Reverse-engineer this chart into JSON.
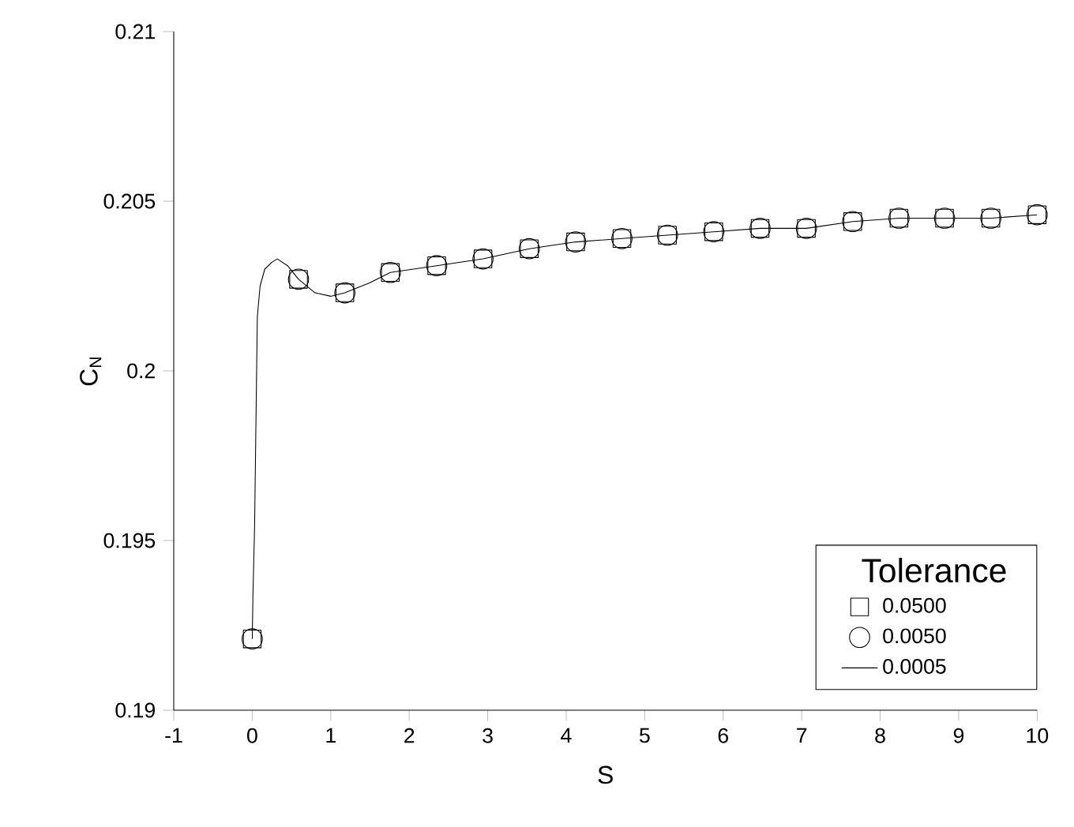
{
  "chart_data": {
    "type": "line",
    "xlabel": "S",
    "ylabel": "C$_{N}$",
    "legend_title": "Tolerance",
    "xlim": [
      -1,
      10
    ],
    "ylim": [
      0.19,
      0.21
    ],
    "xticks": [
      -1,
      0,
      1,
      2,
      3,
      4,
      5,
      6,
      7,
      8,
      9,
      10
    ],
    "yticks": [
      0.19,
      0.195,
      0.2,
      0.205,
      0.21
    ],
    "grid": false,
    "legend": "bottom right",
    "line_style": "solid",
    "series": [
      {
        "name": "0.0500",
        "type": "scatter",
        "color": "#000000",
        "marker": "square",
        "x": [
          0,
          0.59,
          1.18,
          1.76,
          2.35,
          2.94,
          3.53,
          4.12,
          4.71,
          5.29,
          5.88,
          6.47,
          7.06,
          7.65,
          8.24,
          8.82,
          9.41,
          10
        ],
        "values": [
          0.1921,
          0.2027,
          0.2023,
          0.2029,
          0.2031,
          0.2033,
          0.2036,
          0.2038,
          0.2039,
          0.204,
          0.2041,
          0.2042,
          0.2042,
          0.2044,
          0.2045,
          0.2045,
          0.2045,
          0.2046
        ]
      },
      {
        "name": "0.0050",
        "type": "scatter",
        "color": "#000000",
        "marker": "circle",
        "x": [
          0,
          0.59,
          1.18,
          1.76,
          2.35,
          2.94,
          3.53,
          4.12,
          4.71,
          5.29,
          5.88,
          6.47,
          7.06,
          7.65,
          8.24,
          8.82,
          9.41,
          10
        ],
        "values": [
          0.1921,
          0.2027,
          0.2023,
          0.2029,
          0.2031,
          0.2033,
          0.2036,
          0.2038,
          0.2039,
          0.204,
          0.2041,
          0.2042,
          0.2042,
          0.2044,
          0.2045,
          0.2045,
          0.2045,
          0.2046
        ]
      },
      {
        "name": "0.0005",
        "color": "#000000",
        "marker": "none",
        "x": [
          0,
          0.01,
          0.03,
          0.065,
          0.1,
          0.16,
          0.25,
          0.32,
          0.45,
          0.59,
          0.8,
          1.0,
          1.18,
          1.5,
          1.76,
          2.35,
          2.94,
          3.53,
          4.12,
          4.71,
          5.29,
          5.88,
          6.47,
          7.06,
          7.65,
          8.24,
          8.82,
          9.41,
          10
        ],
        "values": [
          0.1921,
          0.1935,
          0.1954,
          0.2016,
          0.2025,
          0.203,
          0.2032,
          0.2033,
          0.2031,
          0.2027,
          0.2023,
          0.2022,
          0.2023,
          0.2026,
          0.2029,
          0.2031,
          0.2033,
          0.2036,
          0.2038,
          0.2039,
          0.204,
          0.2041,
          0.2042,
          0.2042,
          0.2044,
          0.2045,
          0.2045,
          0.2045,
          0.2046
        ]
      }
    ]
  }
}
